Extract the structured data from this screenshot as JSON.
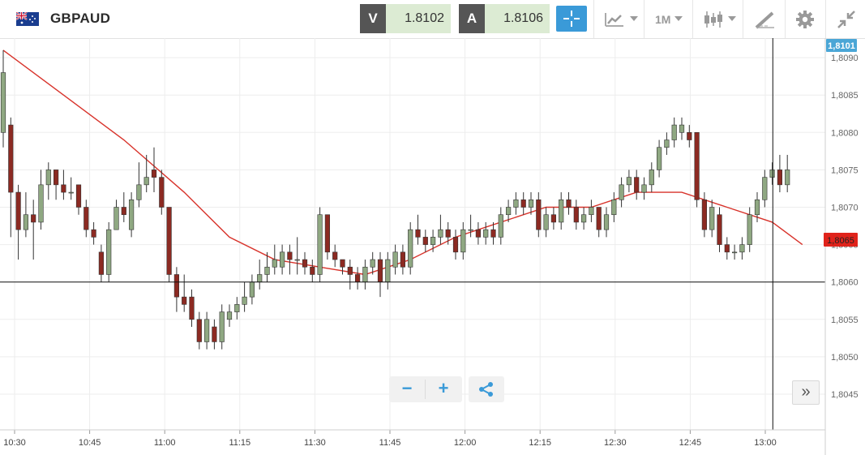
{
  "header": {
    "symbol": "GBPAUD",
    "bid_label": "V",
    "bid_value": "1.8102",
    "ask_label": "A",
    "ask_value": "1.8106",
    "timeframe": "1M"
  },
  "colors": {
    "bull": "#8fa882",
    "bear": "#8c2a22",
    "ma": "#d8332b",
    "accent": "#3a9ad8",
    "price_tag_top": "#4aa6d6",
    "price_tag_ma": "#e0231b"
  },
  "icons": [
    "uk-australia-flag-icon",
    "crosshair-icon",
    "line-chart-icon",
    "candlestick-icon",
    "draw-tool-icon",
    "gear-icon",
    "collapse-icon",
    "zoom-out-icon",
    "zoom-in-icon",
    "share-icon",
    "scroll-right-icon"
  ],
  "controls": {
    "zoom_out": "−",
    "zoom_in": "+",
    "scroll_right": "»"
  },
  "chart_data": {
    "type": "candlestick",
    "y_ticks": [
      "1,8045",
      "1,8050",
      "1,8055",
      "1,8060",
      "1,8065",
      "1,8070",
      "1,8075",
      "1,8080",
      "1,8085",
      "1,8090"
    ],
    "x_ticks": [
      "10:30",
      "10:45",
      "11:00",
      "11:15",
      "11:30",
      "11:45",
      "12:00",
      "12:15",
      "12:30",
      "12:45",
      "13:00"
    ],
    "ylim": [
      1.8041,
      1.8093
    ],
    "grid": true,
    "price_tags": {
      "top": "1,8101",
      "ma": "1,8065"
    },
    "horizontal_line": 1.806,
    "vertical_line_time": "13:01",
    "moving_average": [
      [
        0,
        1.8091
      ],
      [
        8,
        1.8085
      ],
      [
        16,
        1.8079
      ],
      [
        24,
        1.8072
      ],
      [
        30,
        1.8066
      ],
      [
        36,
        1.8063
      ],
      [
        42,
        1.8062
      ],
      [
        48,
        1.8061
      ],
      [
        54,
        1.8063
      ],
      [
        60,
        1.8066
      ],
      [
        66,
        1.8068
      ],
      [
        72,
        1.807
      ],
      [
        78,
        1.807
      ],
      [
        84,
        1.8072
      ],
      [
        90,
        1.8072
      ],
      [
        96,
        1.807
      ],
      [
        102,
        1.8068
      ],
      [
        106,
        1.8065
      ]
    ],
    "candles": [
      [
        0,
        1.808,
        1.8088,
        1.8091,
        1.8078
      ],
      [
        1,
        1.8081,
        1.8072,
        1.8082,
        1.8066
      ],
      [
        2,
        1.8072,
        1.8067,
        1.8073,
        1.8063
      ],
      [
        3,
        1.8067,
        1.8069,
        1.8072,
        1.8066
      ],
      [
        4,
        1.8069,
        1.8068,
        1.8071,
        1.8063
      ],
      [
        5,
        1.8068,
        1.8073,
        1.8075,
        1.8067
      ],
      [
        6,
        1.8073,
        1.8075,
        1.8076,
        1.8071
      ],
      [
        7,
        1.8075,
        1.8073,
        1.8075,
        1.8071
      ],
      [
        8,
        1.8073,
        1.8072,
        1.8075,
        1.8071
      ],
      [
        9,
        1.8072,
        1.8072,
        1.8074,
        1.8071
      ],
      [
        10,
        1.8073,
        1.807,
        1.8073,
        1.8069
      ],
      [
        11,
        1.807,
        1.8067,
        1.8071,
        1.8066
      ],
      [
        12,
        1.8067,
        1.8066,
        1.8068,
        1.8065
      ],
      [
        13,
        1.8064,
        1.8061,
        1.8065,
        1.806
      ],
      [
        14,
        1.8061,
        1.8067,
        1.8068,
        1.806
      ],
      [
        15,
        1.8067,
        1.807,
        1.8071,
        1.8067
      ],
      [
        16,
        1.807,
        1.8069,
        1.8072,
        1.8068
      ],
      [
        17,
        1.8067,
        1.8071,
        1.8072,
        1.8066
      ],
      [
        18,
        1.8071,
        1.8073,
        1.8076,
        1.807
      ],
      [
        19,
        1.8073,
        1.8074,
        1.8077,
        1.8072
      ],
      [
        20,
        1.8075,
        1.8074,
        1.8078,
        1.8072
      ],
      [
        21,
        1.8074,
        1.807,
        1.8075,
        1.8069
      ],
      [
        22,
        1.807,
        1.8061,
        1.807,
        1.806
      ],
      [
        23,
        1.8061,
        1.8058,
        1.8062,
        1.8056
      ],
      [
        24,
        1.8058,
        1.8057,
        1.8061,
        1.8056
      ],
      [
        25,
        1.8058,
        1.8055,
        1.8059,
        1.8054
      ],
      [
        26,
        1.8055,
        1.8052,
        1.8056,
        1.8051
      ],
      [
        27,
        1.8052,
        1.8055,
        1.8056,
        1.8051
      ],
      [
        28,
        1.8054,
        1.8052,
        1.8055,
        1.8051
      ],
      [
        29,
        1.8052,
        1.8056,
        1.8057,
        1.8051
      ],
      [
        30,
        1.8055,
        1.8056,
        1.8057,
        1.8054
      ],
      [
        31,
        1.8056,
        1.8057,
        1.8058,
        1.8055
      ],
      [
        32,
        1.8057,
        1.8058,
        1.806,
        1.8056
      ],
      [
        33,
        1.8058,
        1.806,
        1.8061,
        1.8057
      ],
      [
        34,
        1.806,
        1.8061,
        1.8063,
        1.8059
      ],
      [
        35,
        1.8061,
        1.8062,
        1.8064,
        1.806
      ],
      [
        36,
        1.8062,
        1.8063,
        1.8065,
        1.8061
      ],
      [
        37,
        1.8062,
        1.8064,
        1.8065,
        1.8061
      ],
      [
        38,
        1.8064,
        1.8063,
        1.8065,
        1.8061
      ],
      [
        39,
        1.8063,
        1.8063,
        1.8066,
        1.8061
      ],
      [
        40,
        1.8063,
        1.8062,
        1.8064,
        1.8061
      ],
      [
        41,
        1.8062,
        1.8061,
        1.8063,
        1.806
      ],
      [
        42,
        1.8061,
        1.8069,
        1.807,
        1.806
      ],
      [
        43,
        1.8069,
        1.8064,
        1.8069,
        1.8063
      ],
      [
        44,
        1.8064,
        1.8063,
        1.8065,
        1.8062
      ],
      [
        45,
        1.8063,
        1.8062,
        1.8063,
        1.8061
      ],
      [
        46,
        1.8062,
        1.8061,
        1.8063,
        1.8059
      ],
      [
        47,
        1.8061,
        1.806,
        1.8062,
        1.8059
      ],
      [
        48,
        1.806,
        1.8062,
        1.8063,
        1.8059
      ],
      [
        49,
        1.8062,
        1.8063,
        1.8064,
        1.8061
      ],
      [
        50,
        1.8063,
        1.806,
        1.8064,
        1.8058
      ],
      [
        51,
        1.806,
        1.8063,
        1.8064,
        1.8059
      ],
      [
        52,
        1.8062,
        1.8064,
        1.8065,
        1.8061
      ],
      [
        53,
        1.8064,
        1.8062,
        1.8065,
        1.8061
      ],
      [
        54,
        1.8062,
        1.8067,
        1.8068,
        1.8061
      ],
      [
        55,
        1.8067,
        1.8066,
        1.8069,
        1.8065
      ],
      [
        56,
        1.8066,
        1.8065,
        1.8067,
        1.8064
      ],
      [
        57,
        1.8065,
        1.8066,
        1.8067,
        1.8064
      ],
      [
        58,
        1.8066,
        1.8067,
        1.8069,
        1.8065
      ],
      [
        59,
        1.8067,
        1.8066,
        1.8068,
        1.8065
      ],
      [
        60,
        1.8066,
        1.8064,
        1.8067,
        1.8063
      ],
      [
        61,
        1.8064,
        1.8067,
        1.8068,
        1.8063
      ],
      [
        62,
        1.8067,
        1.8067,
        1.8069,
        1.8066
      ],
      [
        63,
        1.8067,
        1.8066,
        1.8068,
        1.8065
      ],
      [
        64,
        1.8066,
        1.8067,
        1.8068,
        1.8065
      ],
      [
        65,
        1.8067,
        1.8066,
        1.8068,
        1.8065
      ],
      [
        66,
        1.8066,
        1.8069,
        1.807,
        1.8065
      ],
      [
        67,
        1.8069,
        1.807,
        1.8071,
        1.8068
      ],
      [
        68,
        1.807,
        1.8071,
        1.8072,
        1.8069
      ],
      [
        69,
        1.8071,
        1.807,
        1.8072,
        1.8069
      ],
      [
        70,
        1.807,
        1.8071,
        1.8072,
        1.8069
      ],
      [
        71,
        1.8071,
        1.8067,
        1.8072,
        1.8066
      ],
      [
        72,
        1.8067,
        1.8069,
        1.807,
        1.8066
      ],
      [
        73,
        1.8069,
        1.8068,
        1.807,
        1.8067
      ],
      [
        74,
        1.8068,
        1.8071,
        1.8072,
        1.8067
      ],
      [
        75,
        1.8071,
        1.807,
        1.8072,
        1.8069
      ],
      [
        76,
        1.807,
        1.8068,
        1.8071,
        1.8067
      ],
      [
        77,
        1.8068,
        1.8069,
        1.807,
        1.8067
      ],
      [
        78,
        1.8069,
        1.807,
        1.8071,
        1.8068
      ],
      [
        79,
        1.807,
        1.8067,
        1.807,
        1.8066
      ],
      [
        80,
        1.8067,
        1.8069,
        1.807,
        1.8066
      ],
      [
        81,
        1.8069,
        1.8071,
        1.8072,
        1.8068
      ],
      [
        82,
        1.8071,
        1.8073,
        1.8074,
        1.807
      ],
      [
        83,
        1.8073,
        1.8074,
        1.8075,
        1.8072
      ],
      [
        84,
        1.8074,
        1.8072,
        1.8075,
        1.8071
      ],
      [
        85,
        1.8072,
        1.8073,
        1.8074,
        1.8071
      ],
      [
        86,
        1.8073,
        1.8075,
        1.8076,
        1.8072
      ],
      [
        87,
        1.8075,
        1.8078,
        1.8079,
        1.8074
      ],
      [
        88,
        1.8078,
        1.8079,
        1.808,
        1.8077
      ],
      [
        89,
        1.8079,
        1.8081,
        1.8082,
        1.8078
      ],
      [
        90,
        1.808,
        1.8081,
        1.8082,
        1.8079
      ],
      [
        91,
        1.808,
        1.8079,
        1.8081,
        1.8078
      ],
      [
        92,
        1.808,
        1.8071,
        1.808,
        1.807
      ],
      [
        93,
        1.8071,
        1.8067,
        1.8072,
        1.8066
      ],
      [
        94,
        1.8067,
        1.807,
        1.8071,
        1.8066
      ],
      [
        95,
        1.8069,
        1.8065,
        1.807,
        1.8064
      ],
      [
        96,
        1.8065,
        1.8064,
        1.8066,
        1.8063
      ],
      [
        97,
        1.8064,
        1.8064,
        1.8065,
        1.8063
      ],
      [
        98,
        1.8064,
        1.8065,
        1.8066,
        1.8063
      ],
      [
        99,
        1.8065,
        1.8069,
        1.807,
        1.8064
      ],
      [
        100,
        1.8069,
        1.8071,
        1.8072,
        1.8068
      ],
      [
        101,
        1.8071,
        1.8074,
        1.8075,
        1.807
      ],
      [
        102,
        1.8074,
        1.8075,
        1.8076,
        1.8073
      ],
      [
        103,
        1.8075,
        1.8073,
        1.8077,
        1.8072
      ],
      [
        104,
        1.8073,
        1.8075,
        1.8077,
        1.8072
      ]
    ]
  }
}
